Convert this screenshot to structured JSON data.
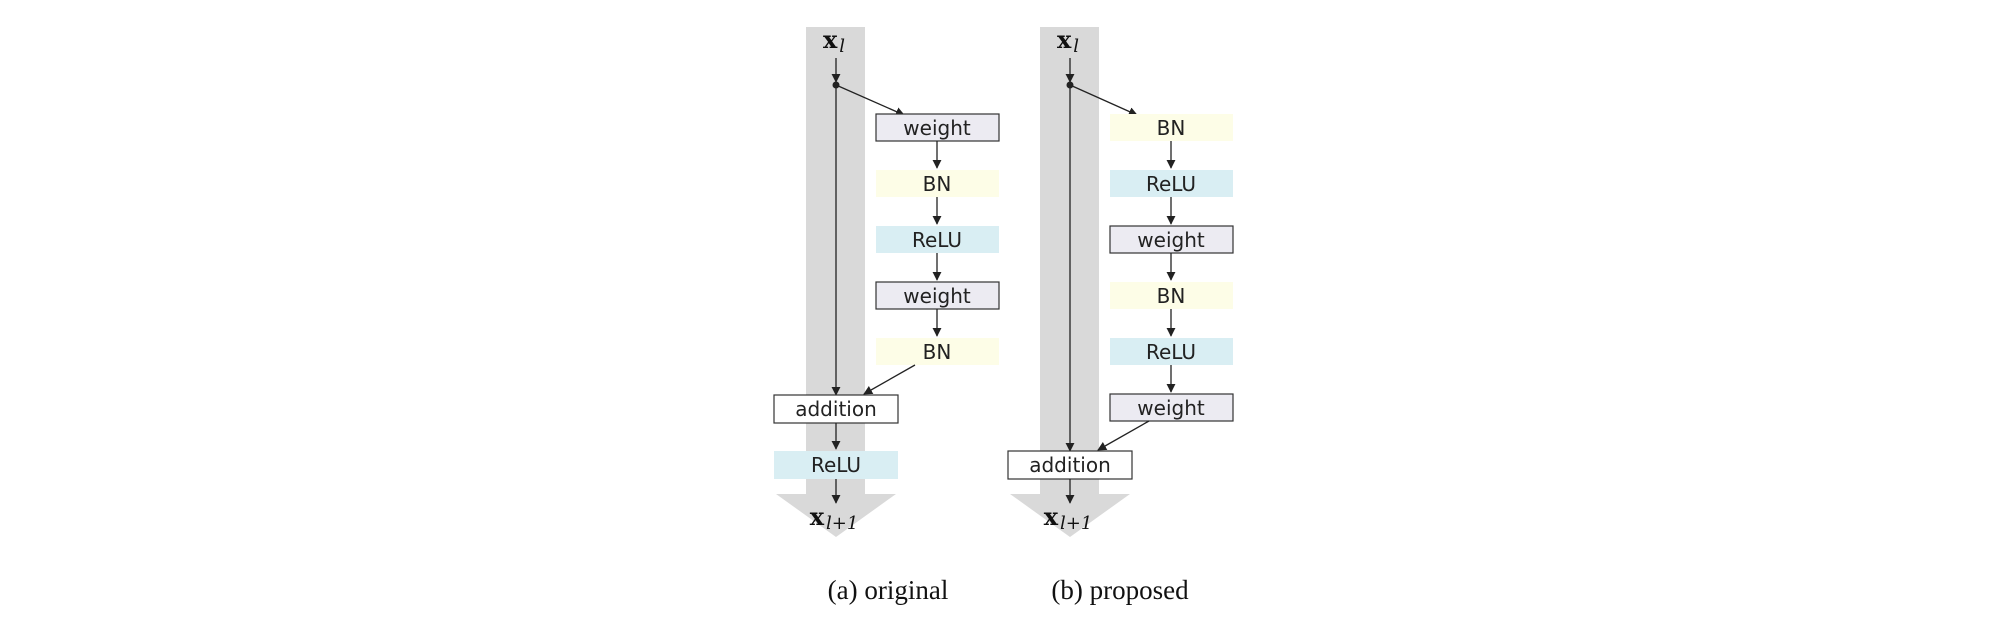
{
  "colors": {
    "trunk": "#d9d9d9",
    "weight_fill": "#ecebf2",
    "bn_fill": "#fdfde7",
    "relu_fill": "#d9eef3",
    "addition_fill": "#ffffff",
    "stroke": "#333333"
  },
  "original": {
    "input": {
      "base": "x",
      "sub": "l"
    },
    "output": {
      "base": "x",
      "sub": "l+1"
    },
    "branch": [
      "weight",
      "BN",
      "ReLU",
      "weight",
      "BN"
    ],
    "addition": "addition",
    "post": "ReLU",
    "caption": "(a) original"
  },
  "proposed": {
    "input": {
      "base": "x",
      "sub": "l"
    },
    "output": {
      "base": "x",
      "sub": "l+1"
    },
    "branch": [
      "BN",
      "ReLU",
      "weight",
      "BN",
      "ReLU",
      "weight"
    ],
    "addition": "addition",
    "caption": "(b) proposed"
  }
}
